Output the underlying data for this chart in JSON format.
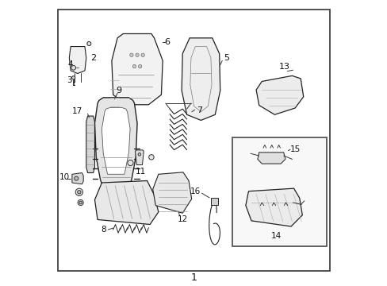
{
  "background_color": "#ffffff",
  "border_color": "#333333",
  "dark": "#222222",
  "figsize": [
    4.89,
    3.6
  ],
  "dpi": 100
}
